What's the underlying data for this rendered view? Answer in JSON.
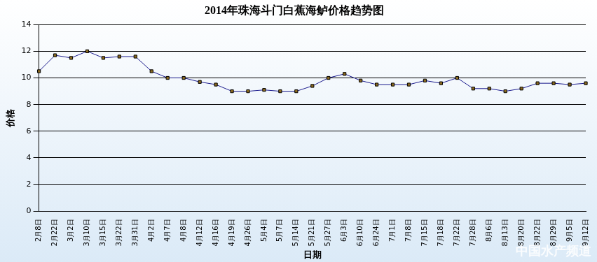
{
  "chart_data": {
    "type": "line",
    "title": "2014年珠海斗门白蕉海鲈价格趋势图",
    "x_label": "日期",
    "y_label": "价格",
    "annotations": [
      "中国水产频道"
    ],
    "categories": [
      "2月8日",
      "2月22日",
      "3月2日",
      "3月10日",
      "3月15日",
      "3月22日",
      "3月31日",
      "4月2日",
      "4月7日",
      "4月8日",
      "4月12日",
      "4月16日",
      "4月19日",
      "4月26日",
      "5月4日",
      "5月7日",
      "5月14日",
      "5月21日",
      "5月27日",
      "6月3日",
      "6月10日",
      "6月24日",
      "7月1日",
      "7月8日",
      "7月15日",
      "7月18日",
      "7月22日",
      "7月28日",
      "8月6日",
      "8月13日",
      "8月20日",
      "8月22日",
      "8月29日",
      "9月5日",
      "9月12日"
    ],
    "values": [
      10.5,
      11.7,
      11.5,
      12.0,
      11.5,
      11.6,
      11.6,
      10.5,
      10.0,
      10.0,
      9.7,
      9.5,
      9.0,
      9.0,
      9.1,
      9.0,
      9.0,
      9.4,
      10.0,
      10.3,
      9.8,
      9.5,
      9.5,
      9.5,
      9.8,
      9.6,
      10.0,
      9.2,
      9.2,
      9.0,
      9.2,
      9.6,
      9.6,
      9.5,
      9.6
    ],
    "color": "#1a1a8c",
    "marker": "square",
    "ylim": [
      0,
      14
    ],
    "yticks": [
      0,
      2,
      4,
      6,
      8,
      10,
      12,
      14
    ],
    "grid": true
  }
}
